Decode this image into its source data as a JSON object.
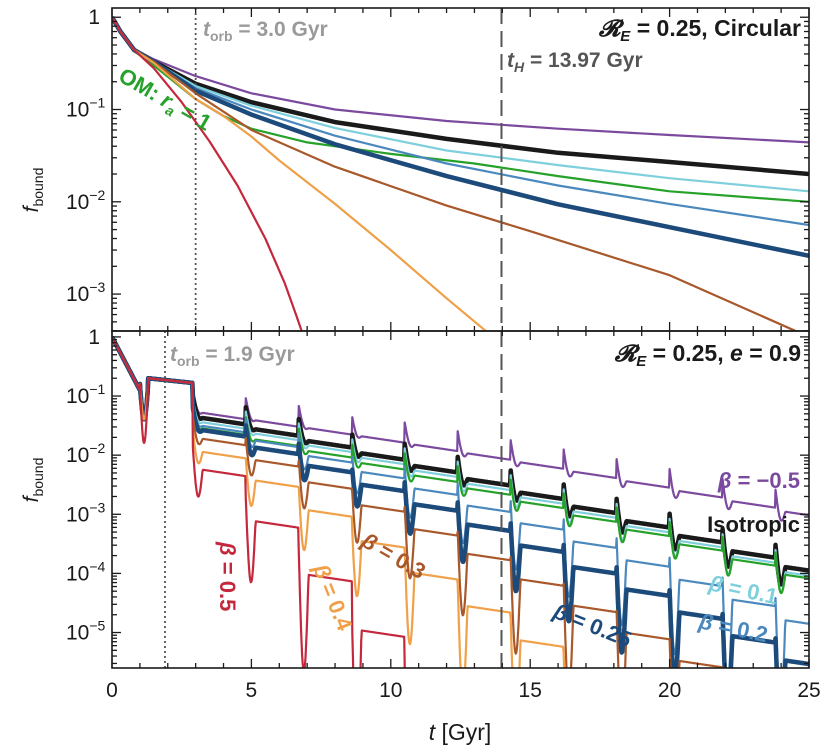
{
  "colors": {
    "purple": "#7b4a9e",
    "black": "#1a1a1a",
    "cyan": "#7fd0dc",
    "green": "#26a12a",
    "steel": "#4a88bd",
    "navy": "#1c4a7a",
    "brown": "#a8582a",
    "orange": "#f0a048",
    "crimson": "#c4283c",
    "gray": "#9a9a9a",
    "dash": "#555555"
  },
  "chart_data": [
    {
      "type": "line",
      "panel": "top",
      "title": "𝓡",
      "title_sub": "E",
      "title_suffix": " = 0.25, Circular",
      "xlabel_italic": "t",
      "xlabel": " [Gyr]",
      "ylabel_italic": "f",
      "ylabel_sub": "bound",
      "xlim": [
        0,
        25
      ],
      "ylim_log10": [
        -3.4,
        0.1
      ],
      "x_ticks": [
        "0",
        "5",
        "10",
        "15",
        "20",
        "25"
      ],
      "y_tick_labels": [
        {
          "base": "1",
          "exp": ""
        },
        {
          "base": "10",
          "exp": "−1"
        },
        {
          "base": "10",
          "exp": "−2"
        },
        {
          "base": "10",
          "exp": "−3"
        }
      ],
      "t_orb": 3.0,
      "t_orb_label_italic": "t",
      "t_orb_label_sub": "orb",
      "t_orb_label": " = 3.0 Gyr",
      "t_H": 13.97,
      "t_H_label_italic": "t",
      "t_H_label_sub": "H",
      "t_H_label": " = 13.97 Gyr",
      "om_label": "OM: ",
      "om_label_italic": "r",
      "om_label_sub": "a",
      "om_label_suffix": " = 1",
      "series": [
        {
          "name": "β = −0.5",
          "color_key": "purple",
          "width": 2.2,
          "x": [
            0,
            0.3,
            0.8,
            1.5,
            3,
            5,
            8,
            12,
            16,
            20,
            25
          ],
          "y": [
            1,
            0.7,
            0.45,
            0.35,
            0.23,
            0.15,
            0.1,
            0.075,
            0.062,
            0.053,
            0.044
          ]
        },
        {
          "name": "Isotropic",
          "color_key": "black",
          "width": 4.5,
          "x": [
            0,
            0.3,
            0.8,
            1.5,
            3,
            5,
            8,
            12,
            16,
            20,
            25
          ],
          "y": [
            1,
            0.7,
            0.44,
            0.33,
            0.19,
            0.12,
            0.073,
            0.048,
            0.034,
            0.027,
            0.02
          ]
        },
        {
          "name": "β = 0.1",
          "color_key": "cyan",
          "width": 2.2,
          "x": [
            0,
            0.3,
            0.8,
            1.5,
            3,
            5,
            8,
            12,
            16,
            20,
            25
          ],
          "y": [
            1,
            0.7,
            0.44,
            0.33,
            0.18,
            0.11,
            0.063,
            0.036,
            0.025,
            0.018,
            0.013
          ]
        },
        {
          "name": "OM: ra = 1",
          "color_key": "green",
          "width": 2.2,
          "x": [
            0,
            0.3,
            0.8,
            1.5,
            3,
            4,
            5,
            7,
            10,
            13,
            16,
            20,
            25
          ],
          "y": [
            1,
            0.7,
            0.43,
            0.3,
            0.13,
            0.085,
            0.062,
            0.044,
            0.033,
            0.026,
            0.019,
            0.013,
            0.01
          ]
        },
        {
          "name": "β = 0.2",
          "color_key": "steel",
          "width": 2.2,
          "x": [
            0,
            0.3,
            0.8,
            1.5,
            3,
            5,
            8,
            12,
            16,
            20,
            25
          ],
          "y": [
            1,
            0.7,
            0.44,
            0.33,
            0.17,
            0.1,
            0.052,
            0.026,
            0.015,
            0.0095,
            0.0056
          ]
        },
        {
          "name": "β = 0.25",
          "color_key": "navy",
          "width": 4.5,
          "x": [
            0,
            0.3,
            0.8,
            1.5,
            3,
            5,
            8,
            12,
            16,
            20,
            25
          ],
          "y": [
            1,
            0.7,
            0.44,
            0.33,
            0.16,
            0.088,
            0.042,
            0.019,
            0.0094,
            0.0053,
            0.0026
          ]
        },
        {
          "name": "β = 0.3",
          "color_key": "brown",
          "width": 2.2,
          "x": [
            0,
            0.3,
            0.8,
            1.5,
            3,
            5,
            8,
            12,
            15,
            20,
            24.5
          ],
          "y": [
            1,
            0.7,
            0.44,
            0.33,
            0.15,
            0.06,
            0.024,
            0.0091,
            0.0048,
            0.0016,
            0.0004
          ]
        },
        {
          "name": "β = 0.4",
          "color_key": "orange",
          "width": 2.2,
          "x": [
            0,
            0.3,
            0.8,
            1.5,
            3,
            4,
            5,
            6,
            8,
            10,
            12,
            13.4
          ],
          "y": [
            1,
            0.7,
            0.44,
            0.32,
            0.13,
            0.085,
            0.051,
            0.028,
            0.0095,
            0.003,
            0.0009,
            0.0004
          ]
        },
        {
          "name": "β = 0.5",
          "color_key": "crimson",
          "width": 2.2,
          "x": [
            0,
            0.3,
            0.8,
            1.5,
            2.5,
            3.5,
            4.5,
            5.5,
            6.2,
            6.6,
            6.8
          ],
          "y": [
            1,
            0.7,
            0.44,
            0.28,
            0.12,
            0.045,
            0.015,
            0.004,
            0.0013,
            0.0006,
            0.0004
          ]
        }
      ]
    },
    {
      "type": "line",
      "panel": "bottom",
      "title": "𝓡",
      "title_sub": "E",
      "title_suffix": " = 0.25, ",
      "title_italic": "e",
      "title_suffix2": " = 0.9",
      "xlim": [
        0,
        25
      ],
      "ylim_log10": [
        -5.6,
        0.1
      ],
      "x_ticks": [
        "0",
        "5",
        "10",
        "15",
        "20",
        "25"
      ],
      "y_tick_labels": [
        {
          "base": "1",
          "exp": ""
        },
        {
          "base": "10",
          "exp": "−1"
        },
        {
          "base": "10",
          "exp": "−2"
        },
        {
          "base": "10",
          "exp": "−3"
        },
        {
          "base": "10",
          "exp": "−4"
        },
        {
          "base": "10",
          "exp": "−5"
        }
      ],
      "t_orb": 1.9,
      "t_orb_label_italic": "t",
      "t_orb_label_sub": "orb",
      "t_orb_label": " = 1.9 Gyr",
      "t_H": 13.97,
      "series": [
        {
          "name": "β = −0.5",
          "color_key": "purple",
          "width": 2.2,
          "lvl3": 0.055,
          "slope": -0.0656,
          "tail_eps": 0.35
        },
        {
          "name": "Isotropic",
          "color_key": "black",
          "width": 4.5,
          "lvl3": 0.045,
          "slope": -0.0989,
          "tail_eps": 0.4
        },
        {
          "name": "β = 0.1",
          "color_key": "cyan",
          "width": 2.2,
          "lvl3": 0.038,
          "slope": -0.0994,
          "tail_eps": 0.45
        },
        {
          "name": "OM: ra = 1",
          "color_key": "green",
          "width": 2.2,
          "lvl3": 0.03,
          "slope": -0.0971,
          "tail_eps": 0.4
        },
        {
          "name": "β = 0.2",
          "color_key": "steel",
          "width": 2.2,
          "lvl3": 0.033,
          "slope": -0.1289,
          "tail_eps": 1.5
        },
        {
          "name": "β = 0.25",
          "color_key": "navy",
          "width": 4.5,
          "lvl3": 0.028,
          "slope": -0.1528,
          "tail_eps": 1.2
        },
        {
          "name": "β = 0.3",
          "color_key": "brown",
          "width": 2.2,
          "lvl3": 0.02,
          "slope": -0.1862,
          "tail_eps": 1.5
        },
        {
          "name": "β = 0.4",
          "color_key": "orange",
          "width": 2.2,
          "lvl3": 0.012,
          "slope": -0.2497,
          "tail_eps": 1.5
        },
        {
          "name": "β = 0.5",
          "color_key": "crimson",
          "width": 2.2,
          "lvl3": 0.006,
          "slope": -0.45,
          "tail_eps": 2
        }
      ],
      "labels": [
        {
          "prefix": "β",
          "text": " = −0.5",
          "color_key": "purple"
        },
        {
          "prefix": "",
          "text": "Isotropic",
          "color_key": "black"
        },
        {
          "prefix": "β",
          "text": " = 0.1",
          "color_key": "cyan"
        },
        {
          "prefix": "β",
          "text": " = 0.2",
          "color_key": "steel"
        },
        {
          "prefix": "β",
          "text": " = 0.25",
          "color_key": "navy"
        },
        {
          "prefix": "β",
          "text": " = 0.3",
          "color_key": "brown"
        },
        {
          "prefix": "β",
          "text": " = 0.4",
          "color_key": "orange"
        },
        {
          "prefix": "β",
          "text": " = 0.5",
          "color_key": "crimson"
        }
      ]
    }
  ]
}
